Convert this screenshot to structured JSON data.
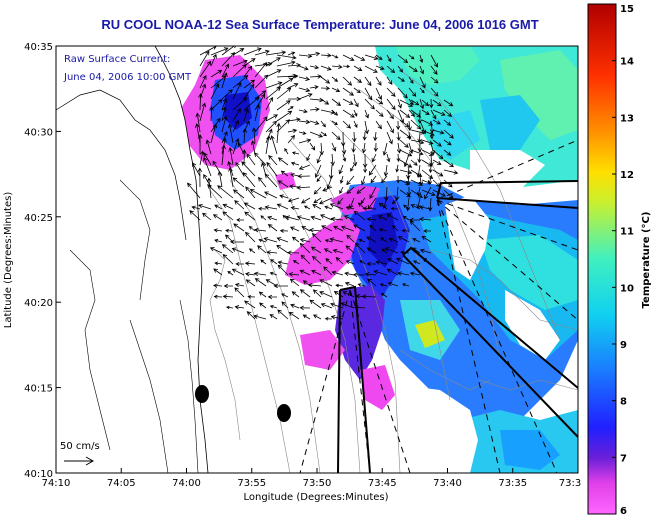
{
  "title": "RU COOL  NOAA-12  Sea Surface Temperature:  June 04, 2006 1016 GMT",
  "annotation": {
    "line1": "Raw Surface Current:",
    "line2": "June 04, 2006 10:00 GMT"
  },
  "scale_label": "50 cm/s",
  "colors": {
    "title": "#1a1aa8",
    "land": "#ffffff",
    "bathy": "#888888",
    "vector": "#000000"
  },
  "chart_data": {
    "type": "heatmap",
    "xlabel": "Longitude (Degrees:Minutes)",
    "ylabel": "Latitude (Degrees:Minutes)",
    "x_ticks": [
      "74:10",
      "74:05",
      "74:00",
      "73:55",
      "73:50",
      "73:45",
      "73:40",
      "73:35",
      "73:3"
    ],
    "y_ticks": [
      "40:35",
      "40:30",
      "40:25",
      "40:20",
      "40:15",
      "40:10"
    ],
    "colorbar": {
      "label": "Temperature (°C)",
      "ticks": [
        "15",
        "14",
        "13",
        "12",
        "11",
        "10",
        "9",
        "8",
        "7",
        "6"
      ],
      "range": [
        6,
        15
      ]
    }
  }
}
